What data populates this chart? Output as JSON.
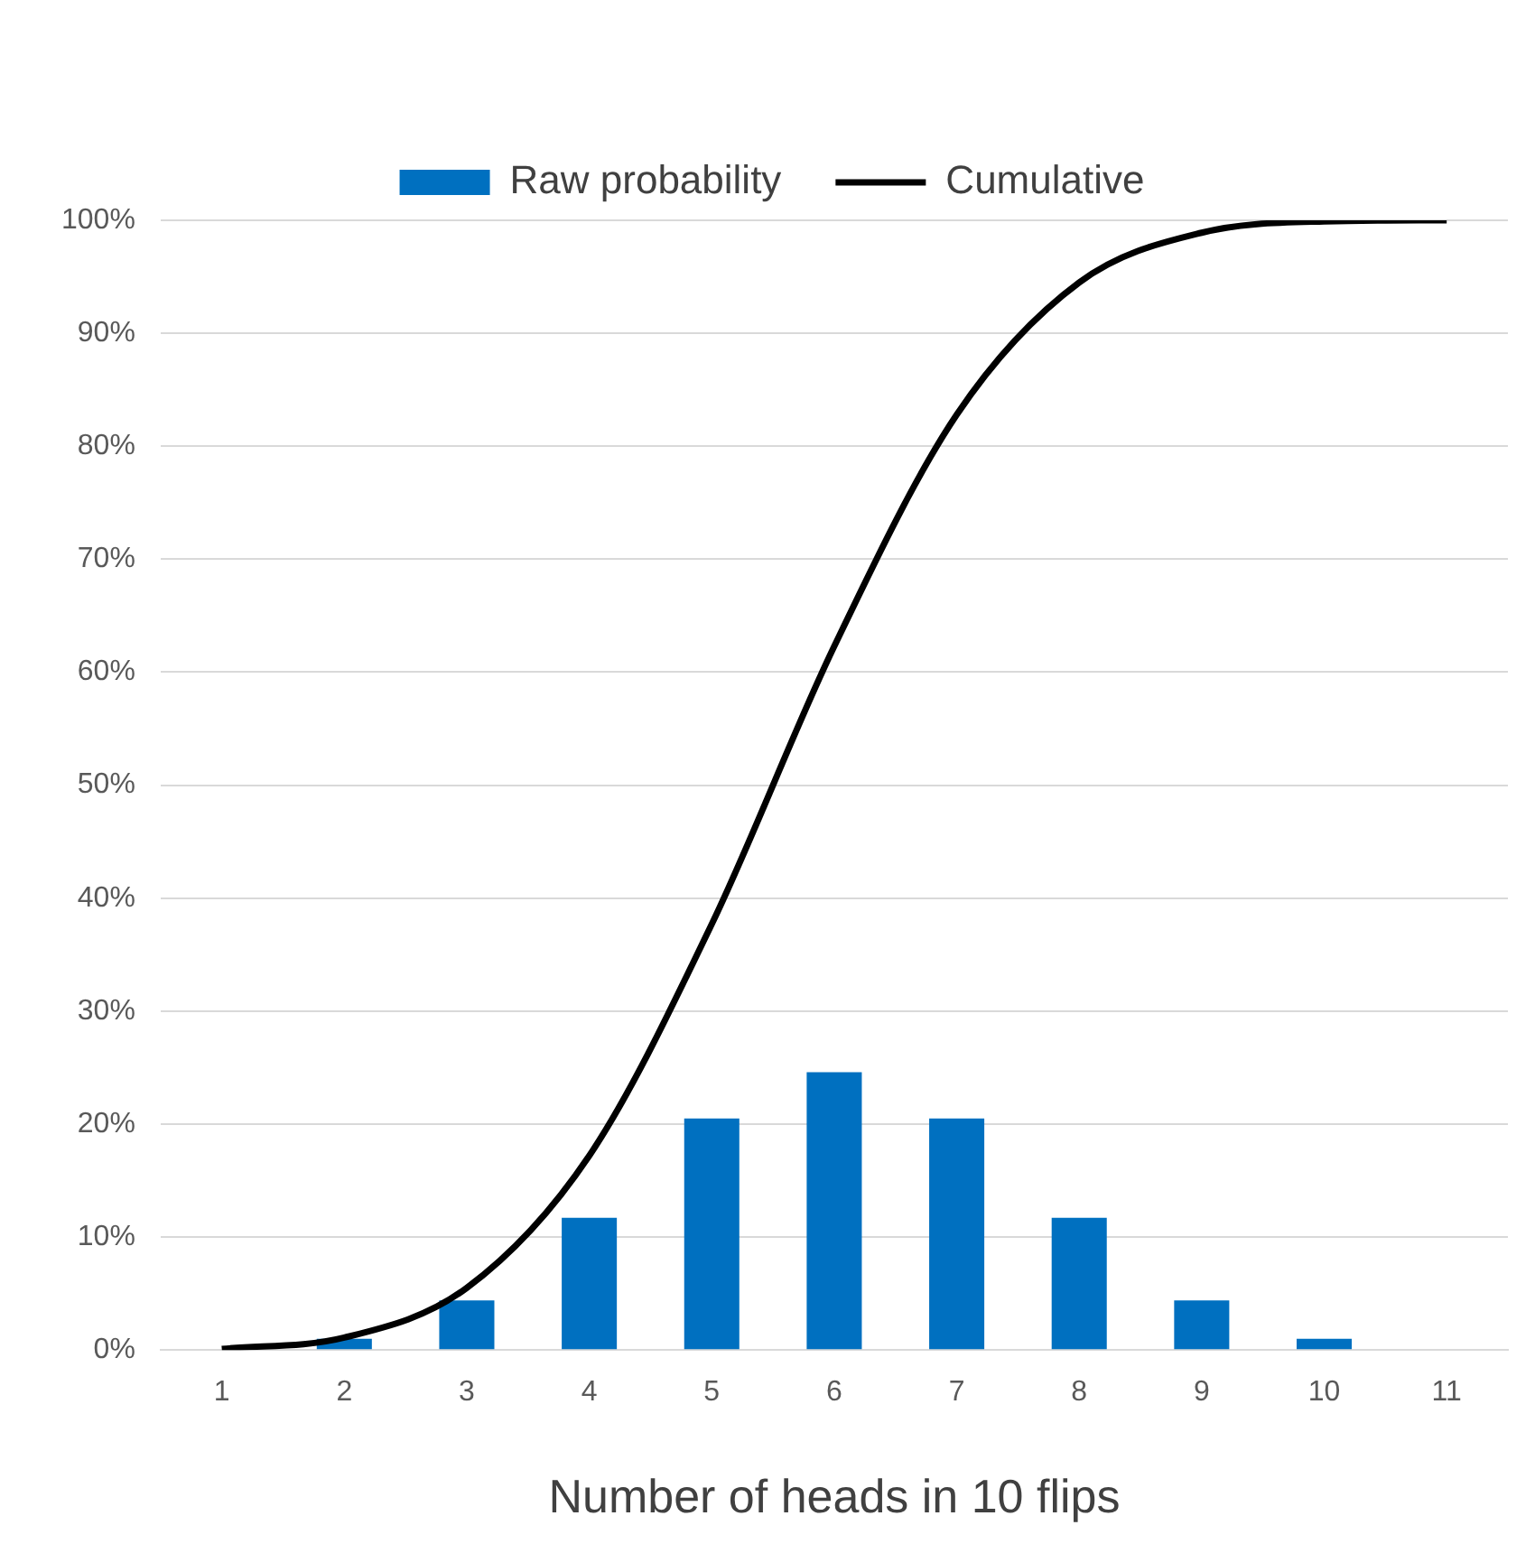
{
  "chart_data": {
    "type": "bar",
    "xlabel": "Number of heads in 10 flips",
    "categories": [
      "1",
      "2",
      "3",
      "4",
      "5",
      "6",
      "7",
      "8",
      "9",
      "10",
      "11"
    ],
    "series": [
      {
        "name": "Raw probability",
        "color": "#0070c0",
        "values": [
          null,
          1,
          4.4,
          11.7,
          20.5,
          24.6,
          20.5,
          11.7,
          4.4,
          1,
          null
        ]
      },
      {
        "name": "Cumulative",
        "type": "line",
        "color": "#000000",
        "marker": "none",
        "values": [
          0.1,
          1.1,
          5.5,
          17.2,
          37.7,
          62.3,
          82.8,
          94.5,
          98.9,
          99.9,
          100
        ]
      }
    ],
    "ylim": [
      0,
      100
    ],
    "yticks": [
      {
        "value": 0,
        "label": "0%"
      },
      {
        "value": 10,
        "label": "10%"
      },
      {
        "value": 20,
        "label": "20%"
      },
      {
        "value": 30,
        "label": "30%"
      },
      {
        "value": 40,
        "label": "40%"
      },
      {
        "value": 50,
        "label": "50%"
      },
      {
        "value": 60,
        "label": "60%"
      },
      {
        "value": 70,
        "label": "70%"
      },
      {
        "value": 80,
        "label": "80%"
      },
      {
        "value": 90,
        "label": "90%"
      },
      {
        "value": 100,
        "label": "100%"
      }
    ],
    "grid": "y",
    "legend": "top"
  }
}
